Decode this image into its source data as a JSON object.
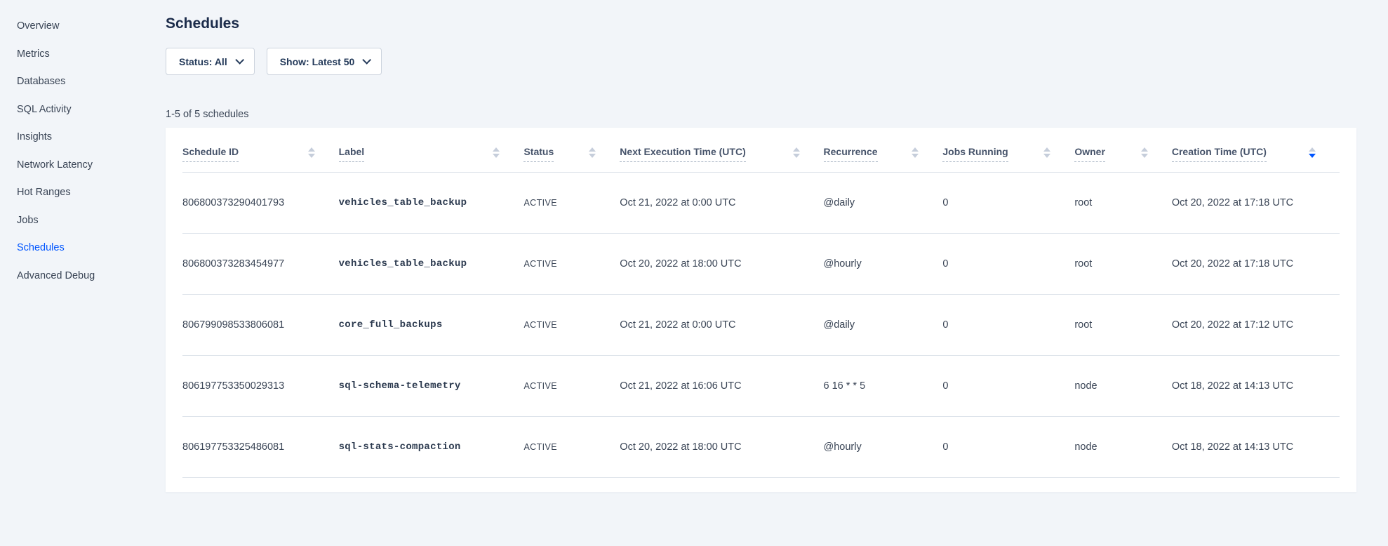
{
  "sidebar": {
    "items": [
      {
        "label": "Overview"
      },
      {
        "label": "Metrics"
      },
      {
        "label": "Databases"
      },
      {
        "label": "SQL Activity"
      },
      {
        "label": "Insights"
      },
      {
        "label": "Network Latency"
      },
      {
        "label": "Hot Ranges"
      },
      {
        "label": "Jobs"
      },
      {
        "label": "Schedules",
        "active": true
      },
      {
        "label": "Advanced Debug"
      }
    ]
  },
  "header": {
    "title": "Schedules"
  },
  "filters": {
    "status_label": "Status: All",
    "show_label": "Show: Latest 50"
  },
  "results_count": "1-5 of 5 schedules",
  "table": {
    "columns": [
      {
        "label": "Schedule ID"
      },
      {
        "label": "Label"
      },
      {
        "label": "Status"
      },
      {
        "label": "Next Execution Time (UTC)"
      },
      {
        "label": "Recurrence"
      },
      {
        "label": "Jobs Running"
      },
      {
        "label": "Owner"
      },
      {
        "label": "Creation Time (UTC)"
      }
    ],
    "sort": {
      "column": "Creation Time (UTC)",
      "direction": "descending"
    },
    "rows": [
      {
        "id": "806800373290401793",
        "label": "vehicles_table_backup",
        "status": "ACTIVE",
        "next_execution": "Oct 21, 2022 at 0:00 UTC",
        "recurrence": "@daily",
        "jobs_running": "0",
        "owner": "root",
        "creation_time": "Oct 20, 2022 at 17:18 UTC"
      },
      {
        "id": "806800373283454977",
        "label": "vehicles_table_backup",
        "status": "ACTIVE",
        "next_execution": "Oct 20, 2022 at 18:00 UTC",
        "recurrence": "@hourly",
        "jobs_running": "0",
        "owner": "root",
        "creation_time": "Oct 20, 2022 at 17:18 UTC"
      },
      {
        "id": "806799098533806081",
        "label": "core_full_backups",
        "status": "ACTIVE",
        "next_execution": "Oct 21, 2022 at 0:00 UTC",
        "recurrence": "@daily",
        "jobs_running": "0",
        "owner": "root",
        "creation_time": "Oct 20, 2022 at 17:12 UTC"
      },
      {
        "id": "806197753350029313",
        "label": "sql-schema-telemetry",
        "status": "ACTIVE",
        "next_execution": "Oct 21, 2022 at 16:06 UTC",
        "recurrence": "6 16 * * 5",
        "jobs_running": "0",
        "owner": "node",
        "creation_time": "Oct 18, 2022 at 14:13 UTC"
      },
      {
        "id": "806197753325486081",
        "label": "sql-stats-compaction",
        "status": "ACTIVE",
        "next_execution": "Oct 20, 2022 at 18:00 UTC",
        "recurrence": "@hourly",
        "jobs_running": "0",
        "owner": "node",
        "creation_time": "Oct 18, 2022 at 14:13 UTC"
      }
    ]
  },
  "colors": {
    "accent_blue": "#0055ff",
    "page_background": "#f2f5f9",
    "card_background": "#ffffff",
    "text_primary": "#394455",
    "title_text": "#1b2b4a",
    "border": "#dde3ea"
  }
}
